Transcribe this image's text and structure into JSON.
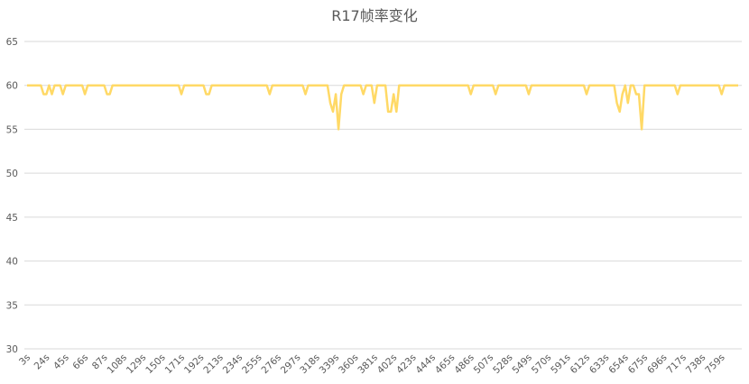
{
  "chart_data": {
    "type": "line",
    "title": "R17帧率变化",
    "xlabel": "",
    "ylabel": "",
    "ylim": [
      30,
      65
    ],
    "yticks": [
      30,
      35,
      40,
      45,
      50,
      55,
      60,
      65
    ],
    "grid": true,
    "legend": "none",
    "x_start_s": 3,
    "x_step_s": 3,
    "x_tick_labels": [
      "3s",
      "24s",
      "45s",
      "66s",
      "87s",
      "108s",
      "129s",
      "150s",
      "171s",
      "192s",
      "213s",
      "234s",
      "255s",
      "276s",
      "297s",
      "318s",
      "339s",
      "360s",
      "381s",
      "402s",
      "423s",
      "444s",
      "465s",
      "486s",
      "507s",
      "528s",
      "549s",
      "570s",
      "591s",
      "612s",
      "633s",
      "654s",
      "675s",
      "696s",
      "717s",
      "738s",
      "759s"
    ],
    "series": [
      {
        "color": "#FFD966",
        "values": [
          60,
          60,
          60,
          60,
          60,
          60,
          59,
          59,
          60,
          59,
          60,
          60,
          60,
          59,
          60,
          60,
          60,
          60,
          60,
          60,
          60,
          59,
          60,
          60,
          60,
          60,
          60,
          60,
          60,
          59,
          59,
          60,
          60,
          60,
          60,
          60,
          60,
          60,
          60,
          60,
          60,
          60,
          60,
          60,
          60,
          60,
          60,
          60,
          60,
          60,
          60,
          60,
          60,
          60,
          60,
          60,
          59,
          60,
          60,
          60,
          60,
          60,
          60,
          60,
          60,
          59,
          59,
          60,
          60,
          60,
          60,
          60,
          60,
          60,
          60,
          60,
          60,
          60,
          60,
          60,
          60,
          60,
          60,
          60,
          60,
          60,
          60,
          60,
          59,
          60,
          60,
          60,
          60,
          60,
          60,
          60,
          60,
          60,
          60,
          60,
          60,
          59,
          60,
          60,
          60,
          60,
          60,
          60,
          60,
          60,
          58,
          57,
          59,
          55,
          59,
          60,
          60,
          60,
          60,
          60,
          60,
          60,
          59,
          60,
          60,
          60,
          58,
          60,
          60,
          60,
          60,
          57,
          57,
          59,
          57,
          60,
          60,
          60,
          60,
          60,
          60,
          60,
          60,
          60,
          60,
          60,
          60,
          60,
          60,
          60,
          60,
          60,
          60,
          60,
          60,
          60,
          60,
          60,
          60,
          60,
          60,
          59,
          60,
          60,
          60,
          60,
          60,
          60,
          60,
          60,
          59,
          60,
          60,
          60,
          60,
          60,
          60,
          60,
          60,
          60,
          60,
          60,
          59,
          60,
          60,
          60,
          60,
          60,
          60,
          60,
          60,
          60,
          60,
          60,
          60,
          60,
          60,
          60,
          60,
          60,
          60,
          60,
          60,
          59,
          60,
          60,
          60,
          60,
          60,
          60,
          60,
          60,
          60,
          60,
          58,
          57,
          59,
          60,
          58,
          60,
          60,
          59,
          59,
          55,
          60,
          60,
          60,
          60,
          60,
          60,
          60,
          60,
          60,
          60,
          60,
          60,
          59,
          60,
          60,
          60,
          60,
          60,
          60,
          60,
          60,
          60,
          60,
          60,
          60,
          60,
          60,
          60,
          59,
          60,
          60,
          60,
          60,
          60,
          60
        ]
      }
    ]
  }
}
